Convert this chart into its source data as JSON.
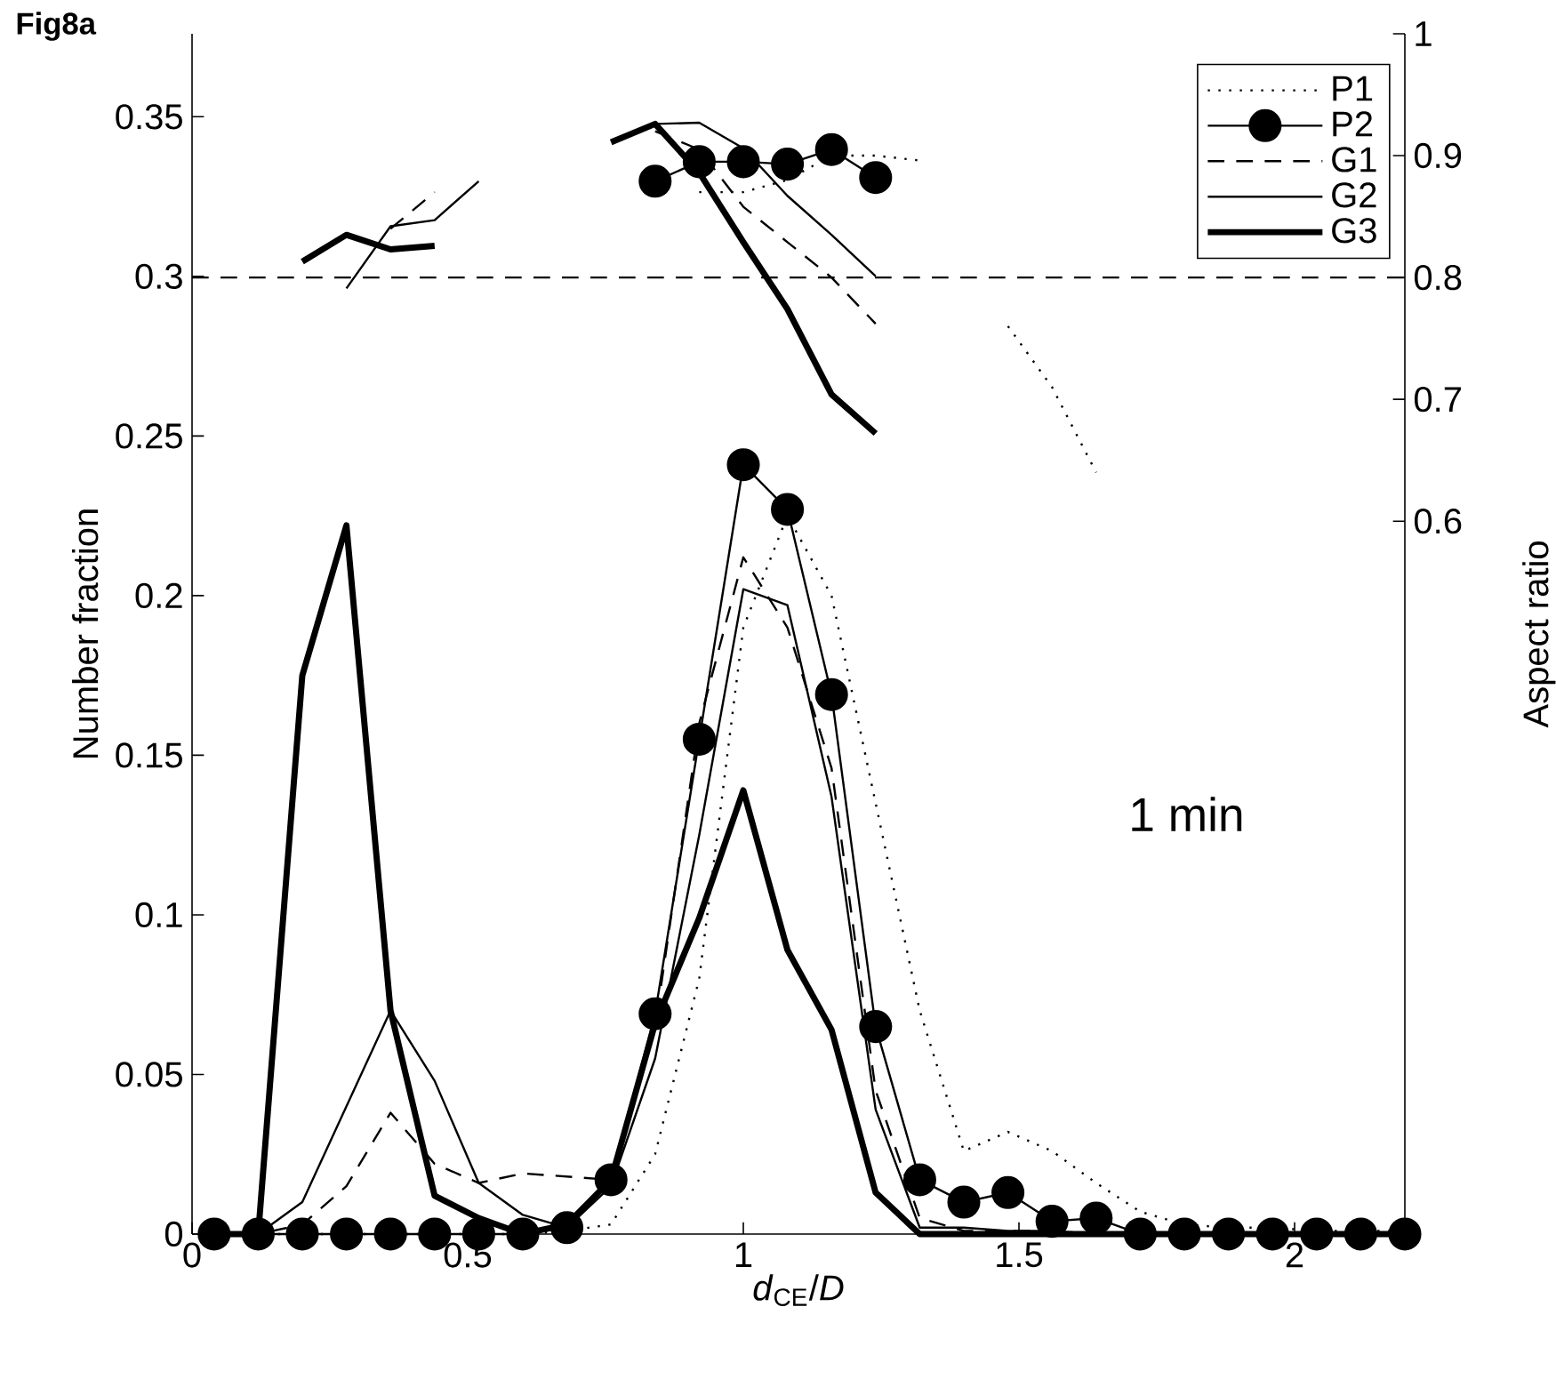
{
  "chart_data": {
    "type": "line",
    "title": "Fig8a",
    "xlabel": "*d*$_{CE}$/*D*",
    "ylabel": "Number fraction",
    "y2label": "Aspect ratio",
    "annotations": [
      "1 min"
    ],
    "x": [
      0.04,
      0.12,
      0.2,
      0.28,
      0.36,
      0.44,
      0.52,
      0.6,
      0.68,
      0.76,
      0.84,
      0.92,
      1.0,
      1.08,
      1.16,
      1.24,
      1.32,
      1.4,
      1.48,
      1.56,
      1.64,
      1.72,
      1.8,
      1.88,
      1.96,
      2.04,
      2.12,
      2.2
    ],
    "xlim": [
      0,
      2.2
    ],
    "xticks": [
      0,
      0.5,
      1,
      1.5,
      2
    ],
    "ylim": [
      0,
      0.376
    ],
    "yticks": [
      0,
      0.05,
      0.1,
      0.15,
      0.2,
      0.25,
      0.3,
      0.35
    ],
    "y2lim": [
      0.015,
      1
    ],
    "y2ticks": [
      0.6,
      0.7,
      0.8,
      0.9,
      1
    ],
    "legend": "top right",
    "marker": "none",
    "ref_lines": [
      {
        "axis": "y2",
        "value": 0.8,
        "line_style": "dashed",
        "color": "#000000"
      }
    ],
    "series": [
      {
        "name": "P1",
        "color": "#000000",
        "line_style": "dotted",
        "axis": "y",
        "values": [
          0,
          0,
          0,
          0,
          0,
          0,
          0,
          0,
          0.001,
          0.003,
          0.025,
          0.08,
          0.19,
          0.225,
          0.2,
          0.135,
          0.07,
          0.026,
          0.032,
          0.026,
          0.016,
          0.007,
          0.003,
          0.002,
          0.002,
          0.001,
          0.001,
          0.001
        ]
      },
      {
        "name": "P2",
        "color": "#000000",
        "line_style": "solid",
        "marker": "circle",
        "axis": "y",
        "values": [
          0,
          0,
          0,
          0,
          0,
          0,
          0,
          0,
          0.002,
          0.017,
          0.069,
          0.155,
          0.241,
          0.227,
          0.169,
          0.065,
          0.017,
          0.01,
          0.013,
          0.004,
          0.005,
          0,
          0,
          0,
          0,
          0,
          0,
          0
        ]
      },
      {
        "name": "G1",
        "color": "#000000",
        "line_style": "dashed",
        "axis": "y",
        "values": [
          0,
          0,
          0.003,
          0.015,
          0.038,
          0.022,
          0.016,
          0.019,
          0.018,
          0.017,
          0.065,
          0.16,
          0.212,
          0.19,
          0.146,
          0.045,
          0.005,
          0.001,
          0.001,
          0.001,
          0,
          0,
          0,
          0,
          0,
          0,
          0,
          0
        ]
      },
      {
        "name": "G2",
        "color": "#000000",
        "line_style": "solid",
        "axis": "y",
        "values": [
          0,
          0,
          0.01,
          0.04,
          0.07,
          0.048,
          0.016,
          0.006,
          0.002,
          0.015,
          0.055,
          0.125,
          0.202,
          0.197,
          0.137,
          0.039,
          0.002,
          0.002,
          0.001,
          0.001,
          0,
          0,
          0,
          0,
          0,
          0,
          0,
          0
        ]
      },
      {
        "name": "G3",
        "color": "#000000",
        "line_style": "solid",
        "axis": "y",
        "values": [
          0,
          0,
          0.175,
          0.222,
          0.07,
          0.012,
          0.005,
          0,
          0.003,
          0.017,
          0.066,
          0.099,
          0.139,
          0.089,
          0.064,
          0.013,
          0,
          0,
          0,
          0,
          0,
          0,
          0,
          0,
          0,
          0,
          0,
          0
        ]
      },
      {
        "color": "#000000",
        "line_style": "dotted",
        "axis": "y2",
        "values": [
          null,
          null,
          null,
          null,
          null,
          null,
          null,
          null,
          null,
          null,
          null,
          0.87,
          0.87,
          0.88,
          0.9,
          0.9,
          0.896,
          null,
          0.76,
          0.71,
          0.64,
          null,
          null,
          null,
          null,
          null,
          null,
          null
        ]
      },
      {
        "color": "#000000",
        "line_style": "solid",
        "marker": "circle",
        "axis": "y2",
        "values": [
          null,
          null,
          null,
          null,
          null,
          null,
          null,
          null,
          null,
          null,
          0.879,
          0.895,
          0.895,
          0.893,
          0.905,
          0.882,
          null,
          null,
          null,
          null,
          null,
          null,
          null,
          null,
          null,
          null,
          null,
          null
        ]
      },
      {
        "color": "#000000",
        "line_style": "dashed",
        "axis": "y2",
        "values": [
          null,
          null,
          null,
          null,
          0.84,
          0.87,
          null,
          null,
          null,
          null,
          0.92,
          0.905,
          0.858,
          0.829,
          0.8,
          0.762,
          null,
          null,
          null,
          null,
          null,
          null,
          null,
          null,
          null,
          null,
          null,
          null
        ]
      },
      {
        "color": "#000000",
        "line_style": "solid",
        "axis": "y2",
        "values": [
          null,
          null,
          null,
          0.791,
          0.842,
          0.847,
          0.879,
          null,
          null,
          null,
          0.926,
          0.927,
          0.906,
          0.867,
          0.835,
          0.801,
          null,
          null,
          null,
          null,
          null,
          null,
          null,
          null,
          null,
          null,
          null,
          null
        ]
      },
      {
        "color": "#000000",
        "line_style": "solid",
        "axis": "y2",
        "values": [
          null,
          null,
          0.813,
          0.835,
          0.823,
          0.826,
          null,
          null,
          null,
          0.911,
          0.926,
          0.886,
          0.829,
          0.774,
          0.704,
          0.672,
          null,
          null,
          null,
          null,
          null,
          null,
          null,
          null,
          null,
          null,
          null,
          null
        ]
      }
    ]
  }
}
